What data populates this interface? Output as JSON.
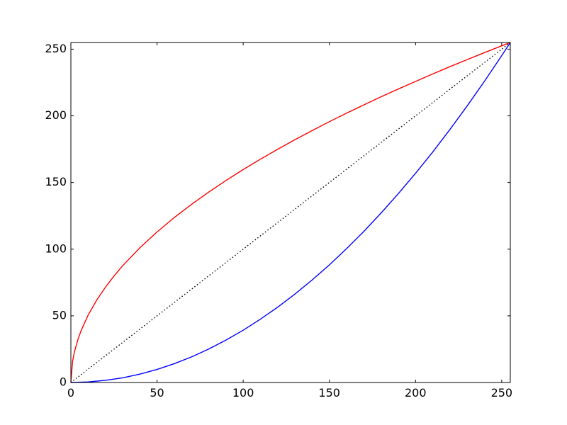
{
  "chart_data": {
    "type": "line",
    "title": "",
    "xlabel": "",
    "ylabel": "",
    "xlim": [
      0,
      255
    ],
    "ylim": [
      0,
      255
    ],
    "xticks": [
      0,
      50,
      100,
      150,
      200,
      250
    ],
    "yticks": [
      0,
      50,
      100,
      150,
      200,
      250
    ],
    "grid": false,
    "legend": "none",
    "series": [
      {
        "style": "solid",
        "color": "#ff0000",
        "x": [
          0,
          1,
          2,
          4,
          6,
          10,
          15,
          20,
          25,
          30,
          40,
          50,
          60,
          70,
          80,
          90,
          100,
          110,
          120,
          130,
          140,
          150,
          160,
          170,
          180,
          190,
          200,
          210,
          220,
          230,
          240,
          250,
          255
        ],
        "y": [
          0,
          16.0,
          22.6,
          31.9,
          39.1,
          50.5,
          61.8,
          71.4,
          79.8,
          87.5,
          101.0,
          112.9,
          123.7,
          133.6,
          142.8,
          151.5,
          159.7,
          167.5,
          174.9,
          182.1,
          188.9,
          195.6,
          202.0,
          208.2,
          214.3,
          220.1,
          225.8,
          231.4,
          236.9,
          242.2,
          247.4,
          252.5,
          255
        ]
      },
      {
        "style": "solid",
        "color": "#0000ff",
        "x": [
          0,
          10,
          20,
          30,
          40,
          50,
          60,
          70,
          80,
          90,
          100,
          110,
          120,
          130,
          140,
          150,
          160,
          170,
          180,
          190,
          200,
          210,
          220,
          230,
          240,
          250,
          255
        ],
        "y": [
          0,
          0.4,
          1.6,
          3.5,
          6.3,
          9.8,
          14.1,
          19.2,
          25.1,
          31.8,
          39.2,
          47.5,
          56.5,
          66.3,
          76.9,
          88.2,
          100.4,
          113.3,
          127.1,
          141.6,
          156.9,
          172.9,
          189.8,
          207.5,
          225.9,
          245.1,
          255
        ]
      },
      {
        "style": "dotted",
        "color": "#000000",
        "x": [
          0,
          255
        ],
        "y": [
          0,
          255
        ]
      }
    ]
  }
}
